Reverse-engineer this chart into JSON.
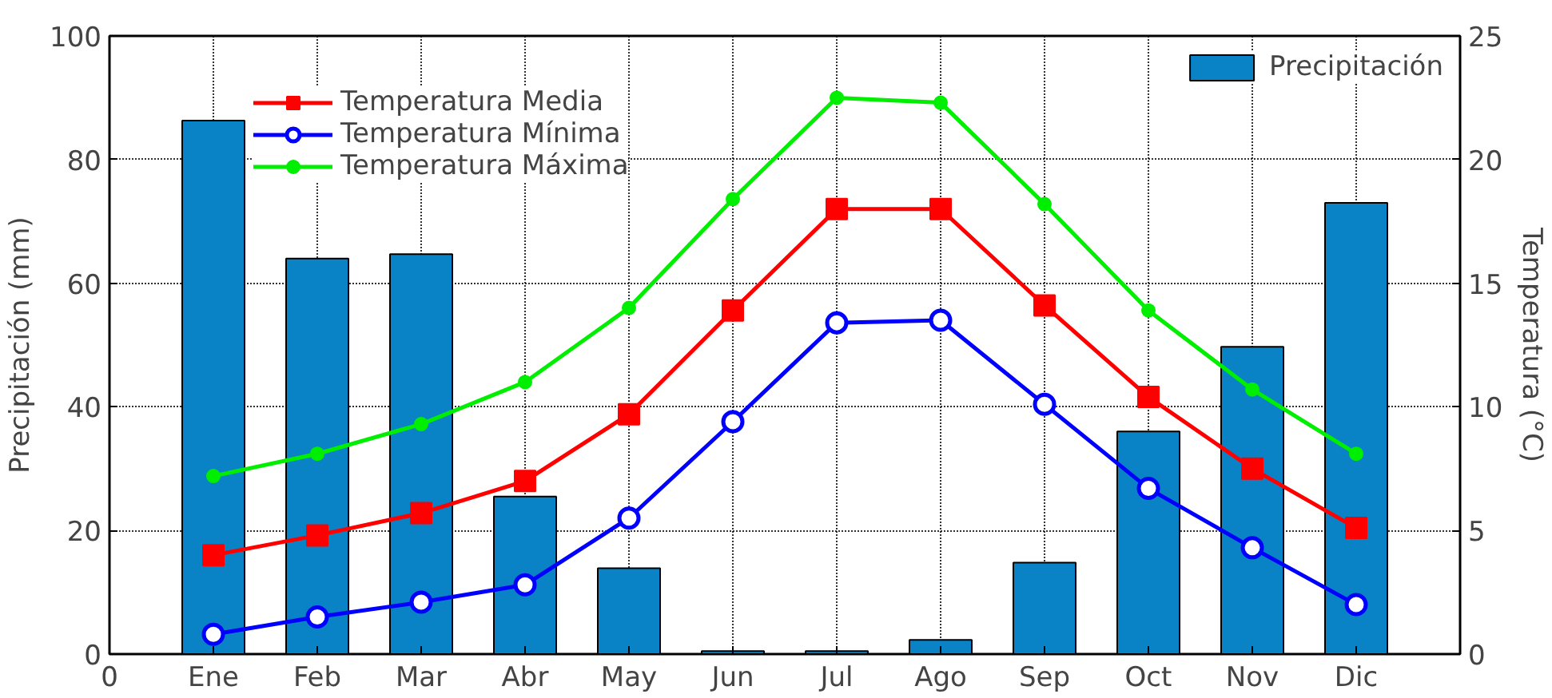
{
  "chart_data": {
    "type": "line",
    "ylabel": "Precipitación (mm)",
    "y2label": "Temperatura (°C)",
    "categories": [
      "Ene",
      "Feb",
      "Mar",
      "Abr",
      "May",
      "Jun",
      "Jul",
      "Ago",
      "Sep",
      "Oct",
      "Nov",
      "Dic"
    ],
    "annotations": [
      "0"
    ],
    "ylim": [
      0,
      100
    ],
    "yticks": [
      0,
      20,
      40,
      60,
      80,
      100
    ],
    "y2lim": [
      0,
      25
    ],
    "y2ticks": [
      0,
      5,
      10,
      15,
      20,
      25
    ],
    "grid": true,
    "legend": "top left",
    "series": [
      {
        "type": "bar",
        "name": "Precipitación",
        "color": "#0a83c6",
        "values": [
          86.3,
          64,
          64.7,
          25.5,
          13.9,
          0.5,
          0.5,
          2.3,
          14.8,
          36,
          49.7,
          73
        ]
      },
      {
        "name": "Temperatura Media",
        "color": "#ff0000",
        "axis": "y2",
        "marker": "square",
        "values": [
          4.0,
          4.8,
          5.7,
          7.0,
          9.7,
          13.9,
          18.0,
          18.0,
          14.1,
          10.4,
          7.5,
          5.1
        ]
      },
      {
        "name": "Temperatura Mínima",
        "color": "#0000ff",
        "axis": "y2",
        "marker": "circle_open",
        "values": [
          0.8,
          1.5,
          2.1,
          2.8,
          5.5,
          9.4,
          13.4,
          13.5,
          10.1,
          6.7,
          4.3,
          2.0
        ]
      },
      {
        "name": "Temperatura Máxima",
        "color": "#00ee00",
        "axis": "y2",
        "marker": "circle",
        "values": [
          7.2,
          8.1,
          9.3,
          11.0,
          14.0,
          18.4,
          22.5,
          22.3,
          18.2,
          13.9,
          10.7,
          8.1
        ]
      }
    ]
  }
}
